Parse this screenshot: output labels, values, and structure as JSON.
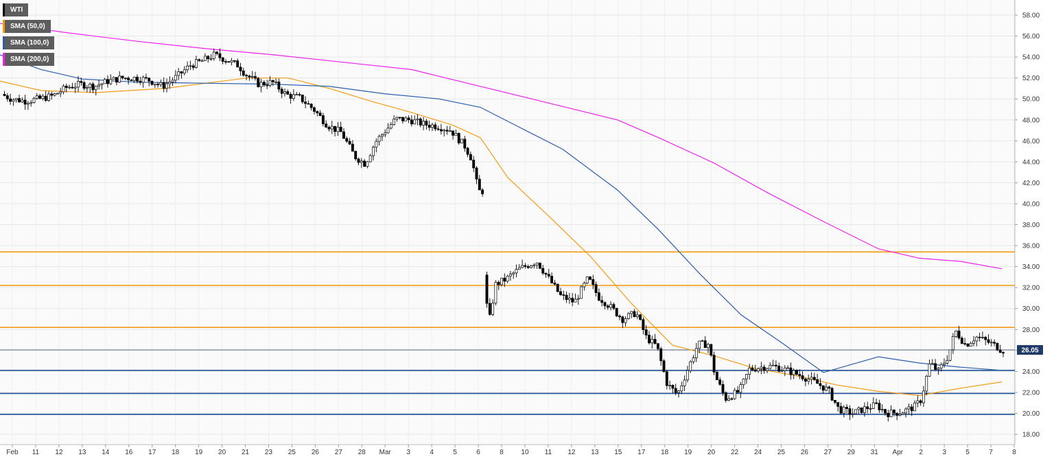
{
  "legend": [
    {
      "label": "WTI",
      "color": "#000000"
    },
    {
      "label": "SMA (50,0)",
      "color": "#f39c12"
    },
    {
      "label": "SMA (100,0)",
      "color": "#2a5caa"
    },
    {
      "label": "SMA (200,0)",
      "color": "#ee22ee"
    }
  ],
  "price_tag": "26.05",
  "chart_data": {
    "type": "candlestick",
    "ylim": [
      17,
      59
    ],
    "y_ticks": [
      "58.00",
      "56.00",
      "54.00",
      "52.00",
      "50.00",
      "48.00",
      "46.00",
      "44.00",
      "42.00",
      "40.00",
      "38.00",
      "36.00",
      "34.00",
      "32.00",
      "30.00",
      "28.00",
      "26.00",
      "24.00",
      "22.00",
      "20.00",
      "18.00"
    ],
    "y_tick_values": [
      58,
      56,
      54,
      52,
      50,
      48,
      46,
      44,
      42,
      40,
      38,
      36,
      34,
      32,
      30,
      28,
      26,
      24,
      22,
      20,
      18
    ],
    "x_ticks": [
      "Feb",
      "11",
      "12",
      "13",
      "14",
      "16",
      "17",
      "18",
      "19",
      "20",
      "21",
      "23",
      "25",
      "26",
      "27",
      "28",
      "Mar",
      "3",
      "4",
      "5",
      "6",
      "8",
      "10",
      "11",
      "12",
      "13",
      "15",
      "17",
      "18",
      "19",
      "20",
      "22",
      "24",
      "25",
      "26",
      "27",
      "29",
      "31",
      "Apr",
      "2",
      "3",
      "5",
      "7",
      "8"
    ],
    "current_price": 26.05,
    "horizontal_levels": [
      {
        "value": 35.4,
        "color": "#f39c12"
      },
      {
        "value": 32.2,
        "color": "#f39c12"
      },
      {
        "value": 28.2,
        "color": "#f39c12"
      },
      {
        "value": 24.1,
        "color": "#1f4e99"
      },
      {
        "value": 21.9,
        "color": "#1f4e99"
      },
      {
        "value": 19.9,
        "color": "#1f4e99"
      }
    ],
    "sma50": [
      [
        0,
        51.7
      ],
      [
        60,
        50.8
      ],
      [
        140,
        50.6
      ],
      [
        240,
        51.0
      ],
      [
        300,
        51.5
      ],
      [
        360,
        52.0
      ],
      [
        420,
        52.0
      ],
      [
        480,
        51.0
      ],
      [
        540,
        49.8
      ],
      [
        600,
        48.7
      ],
      [
        660,
        47.5
      ],
      [
        700,
        46.3
      ],
      [
        740,
        42.5
      ],
      [
        800,
        38.8
      ],
      [
        860,
        35.0
      ],
      [
        920,
        30.5
      ],
      [
        980,
        26.5
      ],
      [
        1040,
        25.5
      ],
      [
        1100,
        24.3
      ],
      [
        1160,
        23.6
      ],
      [
        1220,
        22.7
      ],
      [
        1280,
        22.1
      ],
      [
        1340,
        21.7
      ],
      [
        1400,
        22.4
      ],
      [
        1460,
        23.0
      ]
    ],
    "sma100": [
      [
        0,
        54.2
      ],
      [
        60,
        52.8
      ],
      [
        120,
        51.9
      ],
      [
        200,
        51.6
      ],
      [
        300,
        51.5
      ],
      [
        400,
        51.4
      ],
      [
        480,
        51.2
      ],
      [
        560,
        50.5
      ],
      [
        640,
        50.0
      ],
      [
        700,
        49.2
      ],
      [
        760,
        47.2
      ],
      [
        820,
        45.2
      ],
      [
        900,
        41.3
      ],
      [
        960,
        37.5
      ],
      [
        1020,
        33.3
      ],
      [
        1080,
        29.4
      ],
      [
        1140,
        26.7
      ],
      [
        1200,
        23.9
      ],
      [
        1280,
        25.4
      ],
      [
        1340,
        24.8
      ],
      [
        1400,
        24.4
      ],
      [
        1460,
        24.1
      ]
    ],
    "sma200": [
      [
        0,
        57.2
      ],
      [
        100,
        56.3
      ],
      [
        200,
        55.5
      ],
      [
        300,
        54.8
      ],
      [
        400,
        54.2
      ],
      [
        500,
        53.5
      ],
      [
        600,
        52.8
      ],
      [
        700,
        51.2
      ],
      [
        800,
        49.6
      ],
      [
        900,
        48.0
      ],
      [
        960,
        46.3
      ],
      [
        1040,
        43.9
      ],
      [
        1120,
        41.0
      ],
      [
        1200,
        38.3
      ],
      [
        1280,
        35.7
      ],
      [
        1340,
        34.8
      ],
      [
        1400,
        34.5
      ],
      [
        1460,
        33.8
      ]
    ],
    "segments": [
      {
        "x0": 5,
        "x1": 705,
        "points": [
          [
            0,
            50.6
          ],
          [
            20,
            50.0
          ],
          [
            40,
            49.8
          ],
          [
            60,
            50.0
          ],
          [
            80,
            50.3
          ],
          [
            100,
            51.1
          ],
          [
            120,
            51.4
          ],
          [
            140,
            51.2
          ],
          [
            160,
            51.7
          ],
          [
            180,
            52.0
          ],
          [
            200,
            52.0
          ],
          [
            220,
            51.8
          ],
          [
            240,
            51.2
          ],
          [
            260,
            52.1
          ],
          [
            280,
            53.2
          ],
          [
            300,
            53.7
          ],
          [
            315,
            54.2
          ],
          [
            330,
            53.8
          ],
          [
            350,
            53.2
          ],
          [
            360,
            52.4
          ],
          [
            380,
            51.4
          ],
          [
            400,
            51.6
          ],
          [
            420,
            50.4
          ],
          [
            440,
            50.1
          ],
          [
            460,
            49.0
          ],
          [
            480,
            47.5
          ],
          [
            500,
            46.8
          ],
          [
            520,
            44.5
          ],
          [
            535,
            43.8
          ],
          [
            550,
            45.9
          ],
          [
            565,
            47.0
          ],
          [
            580,
            48.1
          ],
          [
            600,
            48.0
          ],
          [
            620,
            47.6
          ],
          [
            640,
            47.4
          ],
          [
            660,
            47.0
          ],
          [
            680,
            45.5
          ],
          [
            690,
            44.3
          ],
          [
            700,
            41.2
          ]
        ]
      },
      {
        "x0": 708,
        "x1": 1462,
        "points": [
          [
            708,
            33.2
          ],
          [
            715,
            28.5
          ],
          [
            725,
            32.3
          ],
          [
            740,
            32.8
          ],
          [
            760,
            33.8
          ],
          [
            785,
            34.5
          ],
          [
            800,
            33.1
          ],
          [
            820,
            31.2
          ],
          [
            840,
            30.6
          ],
          [
            860,
            32.9
          ],
          [
            875,
            31.1
          ],
          [
            890,
            30.3
          ],
          [
            910,
            29.0
          ],
          [
            930,
            29.6
          ],
          [
            945,
            27.2
          ],
          [
            960,
            26.4
          ],
          [
            975,
            22.8
          ],
          [
            990,
            21.8
          ],
          [
            1005,
            24.2
          ],
          [
            1020,
            26.6
          ],
          [
            1035,
            26.6
          ],
          [
            1045,
            23.6
          ],
          [
            1060,
            21.4
          ],
          [
            1080,
            22.1
          ],
          [
            1095,
            24.2
          ],
          [
            1110,
            24.4
          ],
          [
            1130,
            24.5
          ],
          [
            1150,
            24.1
          ],
          [
            1170,
            23.6
          ],
          [
            1190,
            23.0
          ],
          [
            1210,
            22.2
          ],
          [
            1225,
            20.4
          ],
          [
            1245,
            20.0
          ],
          [
            1265,
            20.5
          ],
          [
            1280,
            20.8
          ],
          [
            1295,
            20.0
          ],
          [
            1315,
            20.1
          ],
          [
            1335,
            20.6
          ],
          [
            1345,
            21.3
          ],
          [
            1358,
            24.8
          ],
          [
            1370,
            24.0
          ],
          [
            1385,
            25.5
          ],
          [
            1395,
            27.9
          ],
          [
            1410,
            26.5
          ],
          [
            1425,
            27.3
          ],
          [
            1440,
            26.9
          ],
          [
            1455,
            26.4
          ],
          [
            1462,
            26.05
          ]
        ]
      }
    ]
  }
}
